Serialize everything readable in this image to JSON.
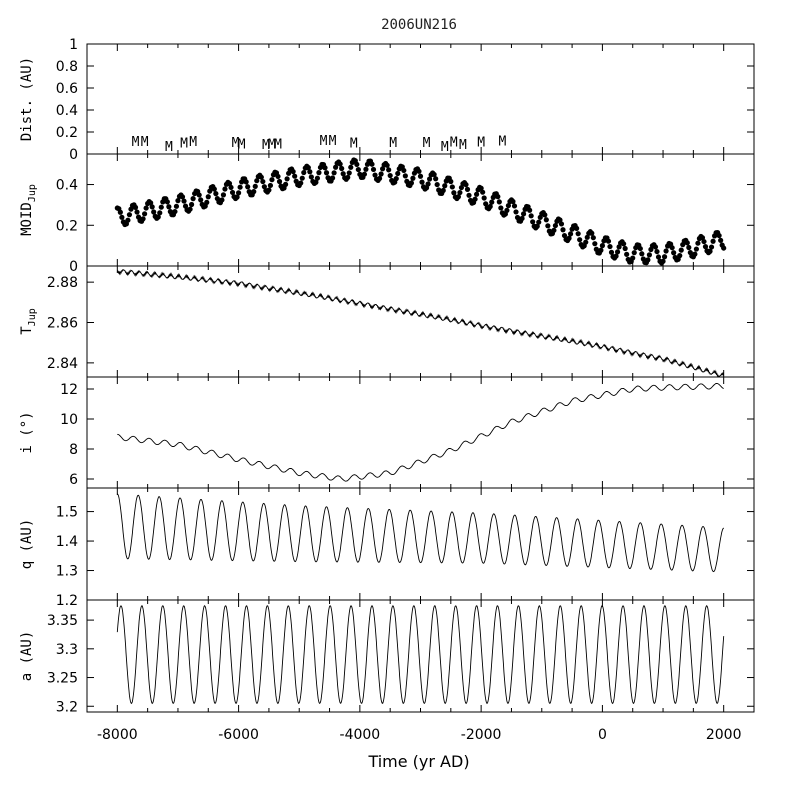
{
  "chart_data": {
    "type": "line",
    "title": "2006UN216",
    "xlabel": "Time (yr AD)",
    "xlim": [
      -8500,
      2500
    ],
    "x_ticks": [
      -8000,
      -6000,
      -4000,
      -2000,
      0,
      2000
    ],
    "x_tick_labels": [
      "-8000",
      "-6000",
      "-4000",
      "-2000",
      "0",
      "2000"
    ],
    "close_encounter_marker": "M",
    "panels": [
      {
        "id": "dist",
        "ylabel": "Dist. (AU)",
        "ylim": [
          0,
          1
        ],
        "y_tick_labels": [
          "0",
          "0.2",
          "0.4",
          "0.6",
          "0.8",
          "1"
        ],
        "y_ticks": [
          0,
          0.2,
          0.4,
          0.6,
          0.8,
          1
        ],
        "markers": [
          {
            "t": -7700,
            "d": 0.045
          },
          {
            "t": -7550,
            "d": 0.045
          },
          {
            "t": -7150,
            "d": 0.0
          },
          {
            "t": -6900,
            "d": 0.03
          },
          {
            "t": -6750,
            "d": 0.045
          },
          {
            "t": -6050,
            "d": 0.035
          },
          {
            "t": -5950,
            "d": 0.025
          },
          {
            "t": -5550,
            "d": 0.02
          },
          {
            "t": -5450,
            "d": 0.025
          },
          {
            "t": -5350,
            "d": 0.025
          },
          {
            "t": -4600,
            "d": 0.055
          },
          {
            "t": -4450,
            "d": 0.055
          },
          {
            "t": -4100,
            "d": 0.03
          },
          {
            "t": -3450,
            "d": 0.035
          },
          {
            "t": -2900,
            "d": 0.035
          },
          {
            "t": -2600,
            "d": 0.0
          },
          {
            "t": -2450,
            "d": 0.04
          },
          {
            "t": -2300,
            "d": 0.02
          },
          {
            "t": -2000,
            "d": 0.04
          },
          {
            "t": -1650,
            "d": 0.05
          }
        ]
      },
      {
        "id": "moid",
        "ylabel": "MOID",
        "ylabel_sub": "Jup",
        "ylim": [
          0,
          0.55
        ],
        "y_ticks": [
          0,
          0.2,
          0.4
        ],
        "y_tick_labels": [
          "0",
          "0.2",
          "0.4"
        ],
        "series_type": "scatter",
        "trend": [
          [
            -8000,
            0.24
          ],
          [
            -7000,
            0.3
          ],
          [
            -6000,
            0.38
          ],
          [
            -5000,
            0.44
          ],
          [
            -4000,
            0.48
          ],
          [
            -3000,
            0.43
          ],
          [
            -2000,
            0.34
          ],
          [
            -1000,
            0.22
          ],
          [
            0,
            0.1
          ],
          [
            500,
            0.06
          ],
          [
            1000,
            0.06
          ],
          [
            1500,
            0.09
          ],
          [
            2000,
            0.13
          ]
        ],
        "oscillation_amplitude": 0.045,
        "oscillation_period": 260
      },
      {
        "id": "tjup",
        "ylabel": "T",
        "ylabel_sub": "Jup",
        "ylim": [
          2.833,
          2.888
        ],
        "y_ticks": [
          2.84,
          2.86,
          2.88
        ],
        "y_tick_labels": [
          "2.84",
          "2.86",
          "2.88"
        ],
        "trend": [
          [
            -8000,
            2.8855
          ],
          [
            -6000,
            2.8795
          ],
          [
            -4000,
            2.8695
          ],
          [
            -2000,
            2.8585
          ],
          [
            0,
            2.848
          ],
          [
            1000,
            2.842
          ],
          [
            2000,
            2.8335
          ]
        ],
        "oscillation_amplitude": 0.0009,
        "oscillation_period": 130
      },
      {
        "id": "incl",
        "ylabel": "i (°)",
        "ylim": [
          5.4,
          12.8
        ],
        "y_ticks": [
          6,
          8,
          10,
          12
        ],
        "y_tick_labels": [
          "6",
          "8",
          "10",
          "12"
        ],
        "trend": [
          [
            -8000,
            8.8
          ],
          [
            -7000,
            8.3
          ],
          [
            -6000,
            7.3
          ],
          [
            -5000,
            6.4
          ],
          [
            -4300,
            6.0
          ],
          [
            -3500,
            6.4
          ],
          [
            -2500,
            7.9
          ],
          [
            -1500,
            9.8
          ],
          [
            -500,
            11.2
          ],
          [
            500,
            12.0
          ],
          [
            1000,
            12.1
          ],
          [
            2000,
            12.2
          ]
        ],
        "oscillation_amplitude": 0.18,
        "oscillation_period": 260
      },
      {
        "id": "q",
        "ylabel": "q (AU)",
        "ylim": [
          1.2,
          1.58
        ],
        "y_ticks": [
          1.2,
          1.3,
          1.4,
          1.5
        ],
        "y_tick_labels": [
          "1.2",
          "1.3",
          "1.4",
          "1.5"
        ],
        "center_trend": [
          [
            -8000,
            1.45
          ],
          [
            -5000,
            1.425
          ],
          [
            -2000,
            1.41
          ],
          [
            2000,
            1.37
          ]
        ],
        "amp_trend": [
          [
            -8000,
            0.11
          ],
          [
            -5000,
            0.095
          ],
          [
            -2000,
            0.085
          ],
          [
            2000,
            0.075
          ]
        ],
        "oscillation_period": 345
      },
      {
        "id": "a",
        "ylabel": "a (AU)",
        "ylim": [
          3.19,
          3.385
        ],
        "y_ticks": [
          3.2,
          3.25,
          3.3,
          3.35
        ],
        "y_tick_labels": [
          "3.2",
          "3.25",
          "3.3",
          "3.35"
        ],
        "center": 3.29,
        "amplitude": 0.085,
        "oscillation_period": 345
      }
    ]
  }
}
